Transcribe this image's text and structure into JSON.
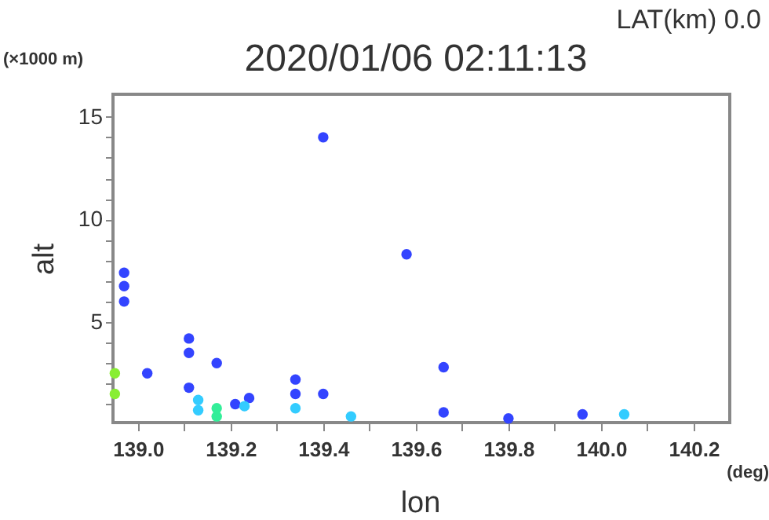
{
  "chart_data": {
    "type": "scatter",
    "title": "2020/01/06 02:11:13",
    "xlabel": "lon",
    "ylabel": "alt",
    "annotations": [
      "LAT(km) 0.0",
      "(×1000 m)",
      "(deg)"
    ],
    "xlim": [
      138.946,
      140.278
    ],
    "ylim": [
      0.1,
      16.1
    ],
    "xticks": [
      {
        "value": 139.0,
        "label": "139.0"
      },
      {
        "value": 139.1,
        "label": null
      },
      {
        "value": 139.2,
        "label": "139.2"
      },
      {
        "value": 139.3,
        "label": null
      },
      {
        "value": 139.4,
        "label": "139.4"
      },
      {
        "value": 139.5,
        "label": null
      },
      {
        "value": 139.6,
        "label": "139.6"
      },
      {
        "value": 139.7,
        "label": null
      },
      {
        "value": 139.8,
        "label": "139.8"
      },
      {
        "value": 139.9,
        "label": null
      },
      {
        "value": 140.0,
        "label": "140.0"
      },
      {
        "value": 140.1,
        "label": null
      },
      {
        "value": 140.2,
        "label": "140.2"
      }
    ],
    "yticks": [
      {
        "value": 1,
        "label": null
      },
      {
        "value": 2,
        "label": null
      },
      {
        "value": 3,
        "label": null
      },
      {
        "value": 4,
        "label": null
      },
      5,
      {
        "value": 6,
        "label": null
      },
      {
        "value": 7,
        "label": null
      },
      {
        "value": 8,
        "label": null
      },
      {
        "value": 9,
        "label": null
      },
      10,
      {
        "value": 11,
        "label": null
      },
      {
        "value": 12,
        "label": null
      },
      {
        "value": 13,
        "label": null
      },
      {
        "value": 14,
        "label": null
      },
      15
    ],
    "grid": false,
    "legend": false,
    "marker": "circle",
    "series": [
      {
        "color": "#3344ff",
        "x": [
          138.97,
          138.97,
          138.97,
          139.02,
          139.11,
          139.11,
          139.11,
          139.17,
          139.21,
          139.24,
          139.34,
          139.34,
          139.4,
          139.4,
          139.58,
          139.66,
          139.66,
          139.8,
          139.96
        ],
        "values": [
          6.0,
          6.75,
          7.4,
          2.5,
          3.5,
          4.2,
          1.8,
          3.0,
          1.0,
          1.3,
          1.5,
          2.2,
          1.5,
          14.0,
          8.3,
          2.8,
          0.6,
          0.3,
          0.5
        ]
      },
      {
        "color": "#33ccff",
        "x": [
          139.13,
          139.13,
          139.23,
          139.34,
          139.46,
          140.05
        ],
        "values": [
          0.7,
          1.2,
          0.9,
          0.8,
          0.4,
          0.5
        ]
      },
      {
        "color": "#33ee99",
        "x": [
          139.17,
          139.17
        ],
        "values": [
          0.4,
          0.8
        ]
      },
      {
        "color": "#88ee33",
        "x": [
          138.95,
          138.95
        ],
        "values": [
          1.5,
          2.5
        ]
      }
    ]
  }
}
